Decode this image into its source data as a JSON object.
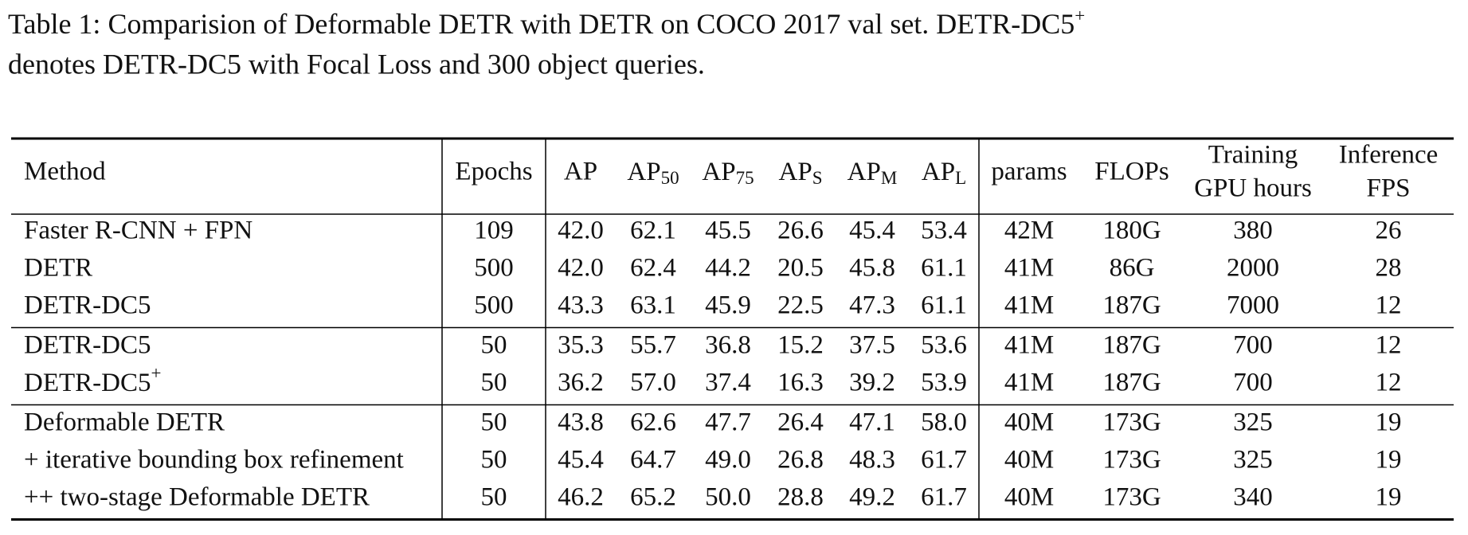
{
  "caption": {
    "line1": {
      "base": "Table 1: Comparision of Deformable DETR with DETR on COCO 2017 val set.  DETR-DC5",
      "sup": "+"
    },
    "line2": "denotes DETR-DC5 with Focal Loss and 300 object queries."
  },
  "table": {
    "headers": [
      "Method",
      "Epochs",
      "AP",
      {
        "base": "AP",
        "sub": "50"
      },
      {
        "base": "AP",
        "sub": "75"
      },
      {
        "base": "AP",
        "sub": "S"
      },
      {
        "base": "AP",
        "sub": "M"
      },
      {
        "base": "AP",
        "sub": "L"
      },
      "params",
      "FLOPs",
      {
        "lines": [
          "Training",
          "GPU hours"
        ]
      },
      {
        "lines": [
          "Inference",
          "FPS"
        ]
      }
    ],
    "groups": [
      [
        [
          "Faster R-CNN + FPN",
          "109",
          "42.0",
          "62.1",
          "45.5",
          "26.6",
          "45.4",
          "53.4",
          "42M",
          "180G",
          "380",
          "26"
        ],
        [
          "DETR",
          "500",
          "42.0",
          "62.4",
          "44.2",
          "20.5",
          "45.8",
          "61.1",
          "41M",
          "86G",
          "2000",
          "28"
        ],
        [
          "DETR-DC5",
          "500",
          "43.3",
          "63.1",
          "45.9",
          "22.5",
          "47.3",
          "61.1",
          "41M",
          "187G",
          "7000",
          "12"
        ]
      ],
      [
        [
          "DETR-DC5",
          "50",
          "35.3",
          "55.7",
          "36.8",
          "15.2",
          "37.5",
          "53.6",
          "41M",
          "187G",
          "700",
          "12"
        ],
        [
          {
            "base": "DETR-DC5",
            "sup": "+"
          },
          "50",
          "36.2",
          "57.0",
          "37.4",
          "16.3",
          "39.2",
          "53.9",
          "41M",
          "187G",
          "700",
          "12"
        ]
      ],
      [
        [
          "Deformable DETR",
          "50",
          "43.8",
          "62.6",
          "47.7",
          "26.4",
          "47.1",
          "58.0",
          "40M",
          "173G",
          "325",
          "19"
        ],
        [
          "+ iterative bounding box refinement",
          "50",
          "45.4",
          "64.7",
          "49.0",
          "26.8",
          "48.3",
          "61.7",
          "40M",
          "173G",
          "325",
          "19"
        ],
        [
          "++ two-stage Deformable DETR",
          "50",
          "46.2",
          "65.2",
          "50.0",
          "28.8",
          "49.2",
          "61.7",
          "40M",
          "173G",
          "340",
          "19"
        ]
      ]
    ]
  }
}
